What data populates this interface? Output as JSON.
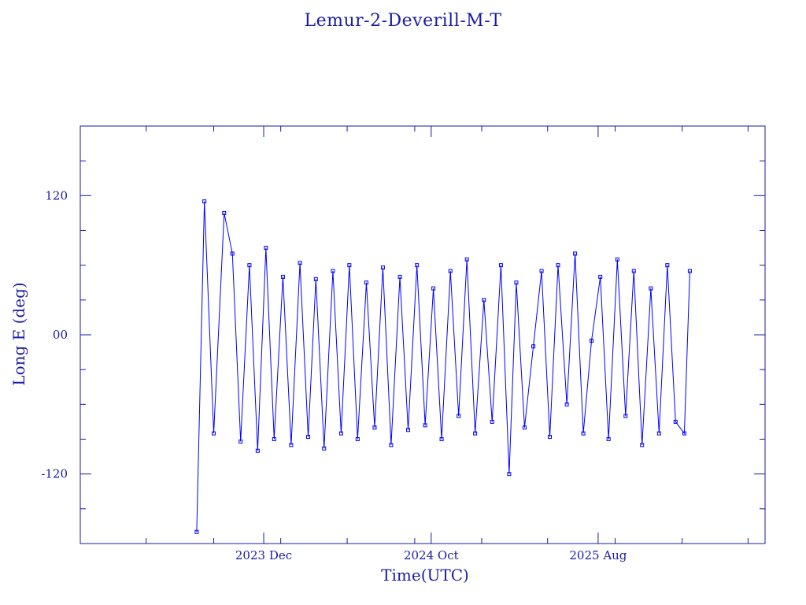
{
  "chart_data": {
    "type": "line",
    "title": "Lemur-2-Deverill-M-T",
    "xlabel": "Time(UTC)",
    "ylabel": "Long E (deg)",
    "x_tick_labels": [
      "2023 Dec",
      "2024 Oct",
      "2025 Aug"
    ],
    "y_tick_labels": [
      "120",
      "00",
      "-120"
    ],
    "y_ticks": [
      120,
      0,
      -120
    ],
    "ylim": [
      -180,
      180
    ],
    "xlim": [
      "2023-01",
      "2026-06"
    ],
    "x_ticks": [
      "2023-12",
      "2024-10",
      "2025-08"
    ],
    "grid": false,
    "series": [
      {
        "color": "#0000ff",
        "marker": "square",
        "x": [
          "2023-08-01",
          "2023-08-15",
          "2023-09-01",
          "2023-09-20",
          "2023-10-05",
          "2023-10-20",
          "2023-11-05",
          "2023-11-20",
          "2023-12-05",
          "2023-12-20",
          "2024-01-05",
          "2024-01-20",
          "2024-02-05",
          "2024-02-20",
          "2024-03-05",
          "2024-03-20",
          "2024-04-05",
          "2024-04-20",
          "2024-05-05",
          "2024-05-20",
          "2024-06-05",
          "2024-06-20",
          "2024-07-05",
          "2024-07-20",
          "2024-08-05",
          "2024-08-20",
          "2024-09-05",
          "2024-09-20",
          "2024-10-05",
          "2024-10-20",
          "2024-11-05",
          "2024-11-20",
          "2024-12-05",
          "2024-12-20",
          "2025-01-05",
          "2025-01-20",
          "2025-02-05",
          "2025-02-20",
          "2025-03-05",
          "2025-03-20",
          "2025-04-05",
          "2025-04-20",
          "2025-05-05",
          "2025-05-20",
          "2025-06-05",
          "2025-06-20",
          "2025-07-05",
          "2025-07-20",
          "2025-08-05",
          "2025-08-20",
          "2025-09-05",
          "2025-09-20",
          "2025-10-05",
          "2025-10-20",
          "2025-11-05",
          "2025-11-20",
          "2025-12-05",
          "2025-12-20",
          "2026-01-05",
          "2026-01-15"
        ],
        "y": [
          -170,
          115,
          -85,
          105,
          70,
          -92,
          60,
          -100,
          75,
          -90,
          50,
          -95,
          62,
          -88,
          48,
          -98,
          55,
          -85,
          60,
          -90,
          45,
          -80,
          58,
          -95,
          50,
          -82,
          60,
          -78,
          40,
          -90,
          55,
          -70,
          65,
          -85,
          30,
          -75,
          60,
          -120,
          45,
          -80,
          -10,
          55,
          -88,
          60,
          -60,
          70,
          -85,
          -5,
          50,
          -90,
          65,
          -70,
          55,
          -95,
          40,
          -85,
          60,
          -75,
          -85,
          55
        ]
      }
    ]
  }
}
